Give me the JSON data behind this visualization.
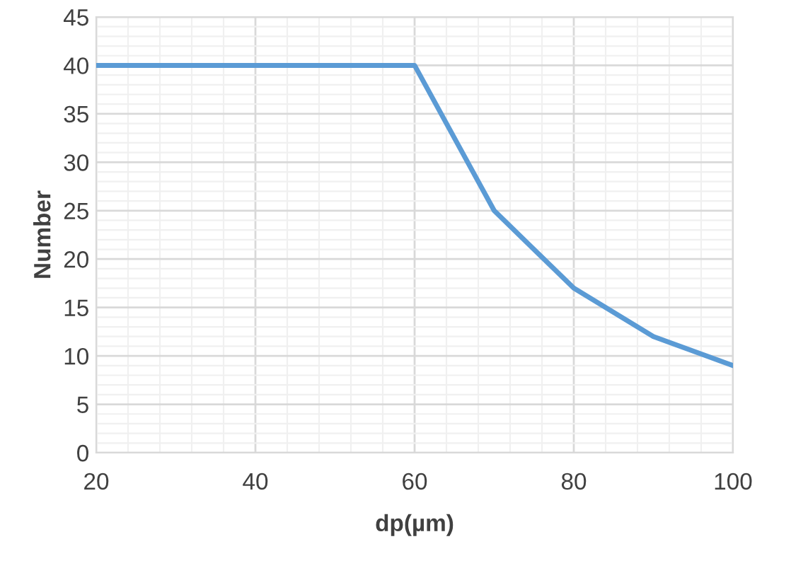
{
  "chart_data": {
    "type": "line",
    "xlabel": "dp(µm)",
    "ylabel": "Number",
    "x": [
      20,
      60,
      70,
      80,
      90,
      100
    ],
    "series": [
      {
        "color": "#5b9bd5",
        "values": [
          40,
          40,
          25,
          17,
          12,
          9
        ]
      }
    ],
    "xlim": [
      20,
      100
    ],
    "xticks": [
      20,
      40,
      60,
      80,
      100
    ],
    "ylim": [
      0,
      45
    ],
    "yticks": [
      0,
      5,
      10,
      15,
      20,
      25,
      30,
      35,
      40,
      45
    ],
    "grid": true,
    "legend": false,
    "marker": "none",
    "line_style": "solid"
  }
}
